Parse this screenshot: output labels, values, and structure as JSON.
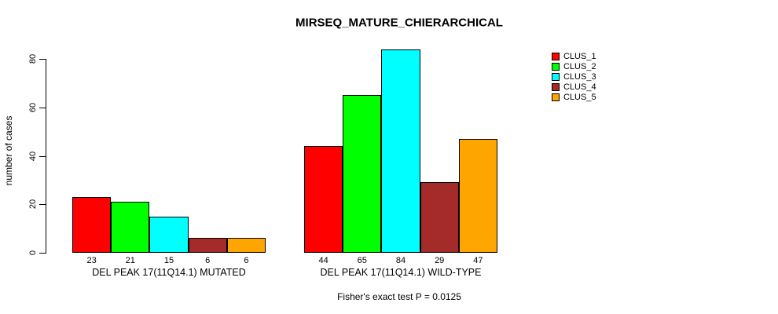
{
  "chart_data": {
    "type": "bar",
    "title": "MIRSEQ_MATURE_CHIERARCHICAL",
    "ylabel": "number of cases",
    "xlabel": "",
    "ylim": [
      0,
      80
    ],
    "yticks": [
      0,
      20,
      40,
      60,
      80
    ],
    "grid": false,
    "legend_position": "right",
    "background": "#FFFFFF",
    "text_color": "#000000",
    "bar_border_color": "#000000",
    "categories": [
      "DEL PEAK 17(11Q14.1) MUTATED",
      "DEL PEAK 17(11Q14.1) WILD-TYPE"
    ],
    "series": [
      {
        "name": "CLUS_1",
        "color": "#FF0000",
        "values": [
          23,
          44
        ]
      },
      {
        "name": "CLUS_2",
        "color": "#00FF00",
        "values": [
          21,
          65
        ]
      },
      {
        "name": "CLUS_3",
        "color": "#00FFFF",
        "values": [
          15,
          84
        ]
      },
      {
        "name": "CLUS_4",
        "color": "#A52A2A",
        "values": [
          6,
          29
        ]
      },
      {
        "name": "CLUS_5",
        "color": "#FFA500",
        "values": [
          6,
          47
        ]
      }
    ],
    "show_bar_values": true,
    "footnote": "Fisher's exact test P = 0.0125"
  }
}
